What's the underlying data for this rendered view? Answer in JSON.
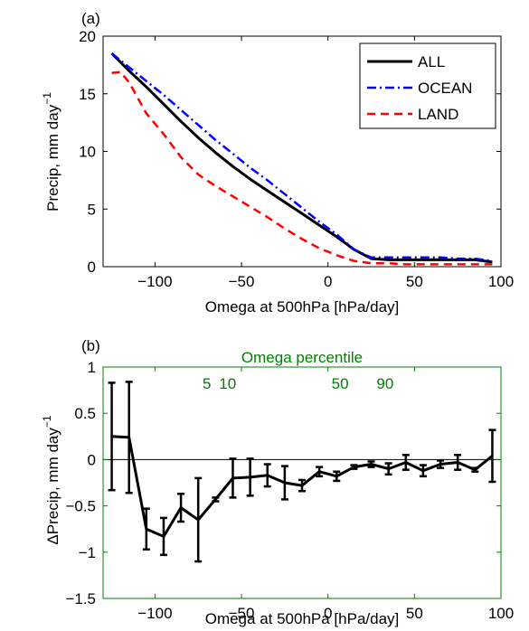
{
  "chart_data": [
    {
      "panel_label": "(a)",
      "type": "line",
      "xlabel": "Omega at 500hPa [hPa/day]",
      "ylabel_main": "Precip, mm day",
      "ylabel_exp": "−1",
      "xlim": [
        -130,
        100
      ],
      "ylim": [
        0,
        20
      ],
      "xticks": [
        -100,
        -50,
        0,
        50,
        100
      ],
      "yticks": [
        0,
        5,
        10,
        15,
        20
      ],
      "grid": false,
      "legend_position": "top-right",
      "series": [
        {
          "name": "ALL",
          "color": "#000000",
          "style": "solid",
          "x": [
            -125,
            -115,
            -105,
            -95,
            -85,
            -75,
            -65,
            -55,
            -45,
            -35,
            -25,
            -15,
            -5,
            5,
            15,
            25,
            35,
            45,
            55,
            65,
            75,
            85,
            95
          ],
          "y": [
            18.5,
            17.0,
            15.6,
            14.1,
            12.6,
            11.2,
            9.9,
            8.7,
            7.6,
            6.6,
            5.6,
            4.6,
            3.6,
            2.6,
            1.5,
            0.7,
            0.6,
            0.6,
            0.6,
            0.6,
            0.6,
            0.6,
            0.4
          ]
        },
        {
          "name": "OCEAN",
          "color": "#0000ff",
          "style": "dashdot",
          "x": [
            -125,
            -115,
            -105,
            -95,
            -85,
            -75,
            -65,
            -55,
            -45,
            -35,
            -25,
            -15,
            -5,
            5,
            15,
            25,
            35,
            45,
            55,
            65,
            75,
            85,
            95
          ],
          "y": [
            18.5,
            17.3,
            16.1,
            14.9,
            13.6,
            12.3,
            11.0,
            9.8,
            8.6,
            7.5,
            6.3,
            5.1,
            3.9,
            2.8,
            1.5,
            0.8,
            0.8,
            0.8,
            0.8,
            0.8,
            0.7,
            0.7,
            0.5
          ]
        },
        {
          "name": "LAND",
          "color": "#ff0000",
          "style": "dashed",
          "x": [
            -125,
            -120,
            -115,
            -105,
            -95,
            -85,
            -75,
            -65,
            -55,
            -45,
            -35,
            -25,
            -15,
            -5,
            5,
            15,
            25,
            35,
            45,
            55,
            65,
            75,
            85,
            95
          ],
          "y": [
            16.8,
            16.9,
            16.0,
            13.3,
            11.5,
            9.5,
            8.0,
            7.0,
            6.1,
            5.2,
            4.3,
            3.3,
            2.4,
            1.6,
            1.0,
            0.5,
            0.3,
            0.3,
            0.2,
            0.2,
            0.2,
            0.2,
            0.2,
            0.2
          ]
        }
      ]
    },
    {
      "panel_label": "(b)",
      "type": "line",
      "xlabel": "Omega at 500hPa [hPa/day]",
      "ylabel_main": "ΔPrecip, mm day",
      "ylabel_exp": "−1",
      "xlim": [
        -130,
        100
      ],
      "ylim": [
        -1.5,
        1
      ],
      "xticks": [
        -100,
        -50,
        0,
        50,
        100
      ],
      "yticks": [
        -1.5,
        -1,
        -0.5,
        0,
        0.5,
        1
      ],
      "ytick_labels": [
        "−1.5",
        "−1",
        "−0.5",
        "0",
        "0.5",
        "1"
      ],
      "grid": false,
      "top_axis": {
        "label": "Omega percentile",
        "color": "#008000",
        "ticks": [
          {
            "label": "5",
            "x": -70
          },
          {
            "label": "10",
            "x": -58
          },
          {
            "label": "50",
            "x": 7
          },
          {
            "label": "90",
            "x": 33
          }
        ]
      },
      "series": [
        {
          "color": "#000000",
          "x": [
            -125,
            -115,
            -105,
            -95,
            -85,
            -75,
            -65,
            -55,
            -45,
            -35,
            -25,
            -15,
            -5,
            5,
            15,
            25,
            35,
            45,
            55,
            65,
            75,
            85,
            95
          ],
          "y": [
            0.25,
            0.24,
            -0.75,
            -0.83,
            -0.52,
            -0.65,
            -0.43,
            -0.2,
            -0.19,
            -0.17,
            -0.25,
            -0.28,
            -0.13,
            -0.18,
            -0.08,
            -0.05,
            -0.1,
            -0.03,
            -0.12,
            -0.05,
            -0.03,
            -0.11,
            0.04
          ],
          "err": [
            0.58,
            0.6,
            0.22,
            0.2,
            0.15,
            0.45,
            0.02,
            0.21,
            0.2,
            0.12,
            0.18,
            0.06,
            0.05,
            0.05,
            0.02,
            0.03,
            0.06,
            0.08,
            0.06,
            0.04,
            0.08,
            0.02,
            0.28
          ]
        }
      ]
    }
  ]
}
